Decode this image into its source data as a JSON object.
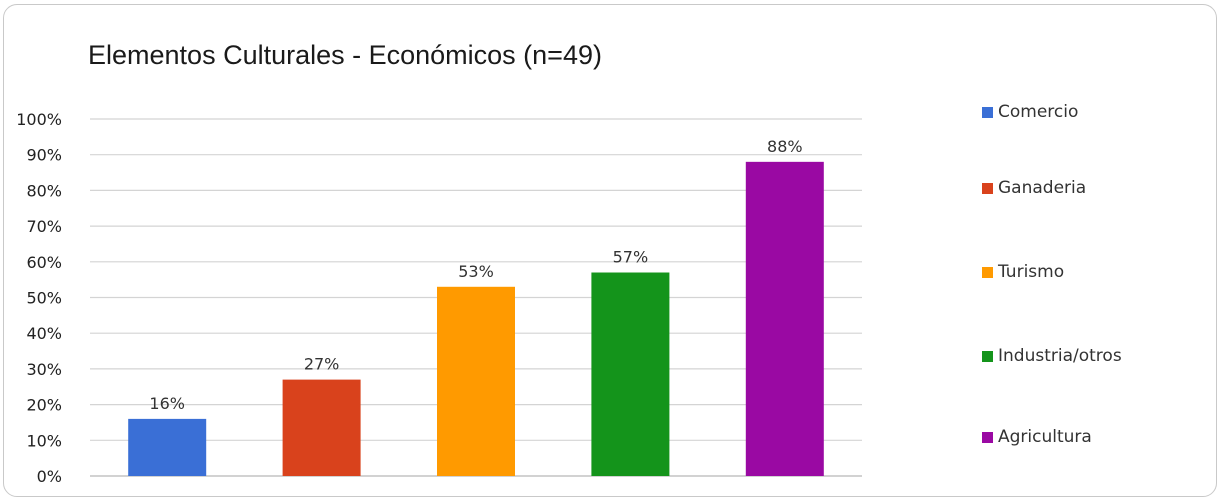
{
  "chart_data": {
    "type": "bar",
    "title": "Elementos Culturales - Económicos (n=49)",
    "xlabel": "",
    "ylabel": "",
    "categories": [
      "Comercio",
      "Ganaderia",
      "Turismo",
      "Industria/otros",
      "Agricultura"
    ],
    "values": [
      16,
      27,
      53,
      57,
      88
    ],
    "data_labels": [
      "16%",
      "27%",
      "53%",
      "57%",
      "88%"
    ],
    "colors": [
      "#3a6fd6",
      "#d9421c",
      "#ff9a00",
      "#14941b",
      "#9a09a3"
    ],
    "ylim": [
      0,
      100
    ],
    "yticks": [
      "0%",
      "10%",
      "20%",
      "30%",
      "40%",
      "50%",
      "60%",
      "70%",
      "80%",
      "90%",
      "100%"
    ],
    "grid": true,
    "legend_position": "right",
    "legend": [
      {
        "label": "Comercio",
        "color": "#3a6fd6"
      },
      {
        "label": "Ganaderia",
        "color": "#d9421c"
      },
      {
        "label": "Turismo",
        "color": "#ff9a00"
      },
      {
        "label": "Industria/otros",
        "color": "#14941b"
      },
      {
        "label": "Agricultura",
        "color": "#9a09a3"
      }
    ]
  }
}
